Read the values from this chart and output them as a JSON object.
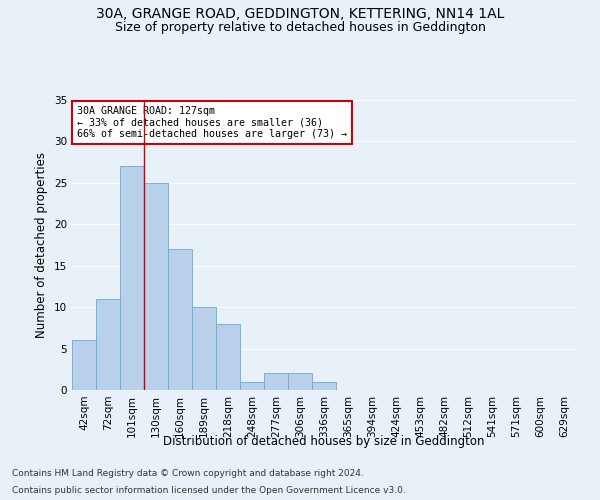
{
  "title1": "30A, GRANGE ROAD, GEDDINGTON, KETTERING, NN14 1AL",
  "title2": "Size of property relative to detached houses in Geddington",
  "xlabel": "Distribution of detached houses by size in Geddington",
  "ylabel": "Number of detached properties",
  "footnote1": "Contains HM Land Registry data © Crown copyright and database right 2024.",
  "footnote2": "Contains public sector information licensed under the Open Government Licence v3.0.",
  "bar_labels": [
    "42sqm",
    "72sqm",
    "101sqm",
    "130sqm",
    "160sqm",
    "189sqm",
    "218sqm",
    "248sqm",
    "277sqm",
    "306sqm",
    "336sqm",
    "365sqm",
    "394sqm",
    "424sqm",
    "453sqm",
    "482sqm",
    "512sqm",
    "541sqm",
    "571sqm",
    "600sqm",
    "629sqm"
  ],
  "bar_values": [
    6,
    11,
    27,
    25,
    17,
    10,
    8,
    1,
    2,
    2,
    1,
    0,
    0,
    0,
    0,
    0,
    0,
    0,
    0,
    0,
    0
  ],
  "bar_color": "#b8d0ea",
  "bar_edge_color": "#6aaad4",
  "vline_color": "#cc0000",
  "vline_x_index": 2.5,
  "annotation_text": "30A GRANGE ROAD: 127sqm\n← 33% of detached houses are smaller (36)\n66% of semi-detached houses are larger (73) →",
  "annotation_box_color": "#ffffff",
  "annotation_box_edge": "#cc0000",
  "ylim": [
    0,
    35
  ],
  "yticks": [
    0,
    5,
    10,
    15,
    20,
    25,
    30,
    35
  ],
  "bg_color": "#e8f0f8",
  "grid_color": "#ffffff",
  "title_fontsize": 10,
  "subtitle_fontsize": 9,
  "axis_label_fontsize": 8.5,
  "tick_fontsize": 7.5,
  "footnote_fontsize": 6.5
}
